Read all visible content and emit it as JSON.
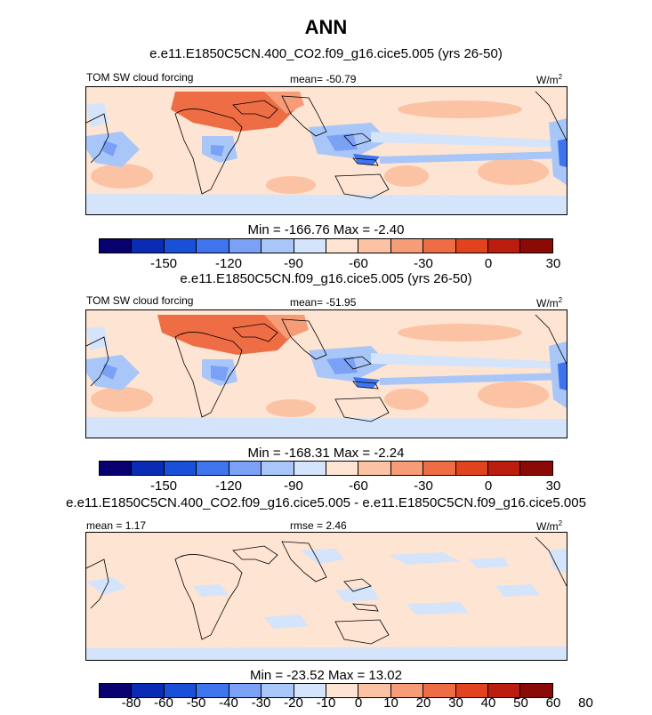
{
  "title": "ANN",
  "colors": {
    "scale": [
      "#08006f",
      "#0a2bb4",
      "#1a4fd8",
      "#3f74ef",
      "#7aa1f5",
      "#a9c6f8",
      "#d4e4fb",
      "#fde4d3",
      "#fbc3a4",
      "#f69c77",
      "#ef6d45",
      "#e2431f",
      "#bb1e0f",
      "#8a0b05"
    ]
  },
  "panels": [
    {
      "subtitle": "e.e11.E1850C5CN.400_CO2.f09_g16.cice5.005 (yrs 26-50)",
      "left_label": "TOM SW cloud forcing",
      "mid_label": "mean= -50.79",
      "right_label": "W/m",
      "right_sup": "2",
      "minmax": "Min = -166.76 Max =  -2.40",
      "tick_labels": [
        "-150",
        "-120",
        "-90",
        "-60",
        "-30",
        "0",
        "30"
      ]
    },
    {
      "subtitle": "e.e11.E1850C5CN.f09_g16.cice5.005 (yrs 26-50)",
      "left_label": "TOM SW cloud forcing",
      "mid_label": "mean= -51.95",
      "right_label": "W/m",
      "right_sup": "2",
      "minmax": "Min = -168.31 Max =  -2.24",
      "tick_labels": [
        "-150",
        "-120",
        "-90",
        "-60",
        "-30",
        "0",
        "30"
      ]
    },
    {
      "subtitle": "e.e11.E1850C5CN.400_CO2.f09_g16.cice5.005 - e.e11.E1850C5CN.f09_g16.cice5.005",
      "left_label": "mean =   1.17",
      "mid_label": "rmse =  2.46",
      "right_label": "W/m",
      "right_sup": "2",
      "minmax": "Min = -23.52 Max =  13.02",
      "tick_labels": [
        "-80",
        "-60",
        "-50",
        "-40",
        "-30",
        "-20",
        "-10",
        "0",
        "10",
        "20",
        "30",
        "40",
        "50",
        "60",
        "80"
      ]
    }
  ]
}
